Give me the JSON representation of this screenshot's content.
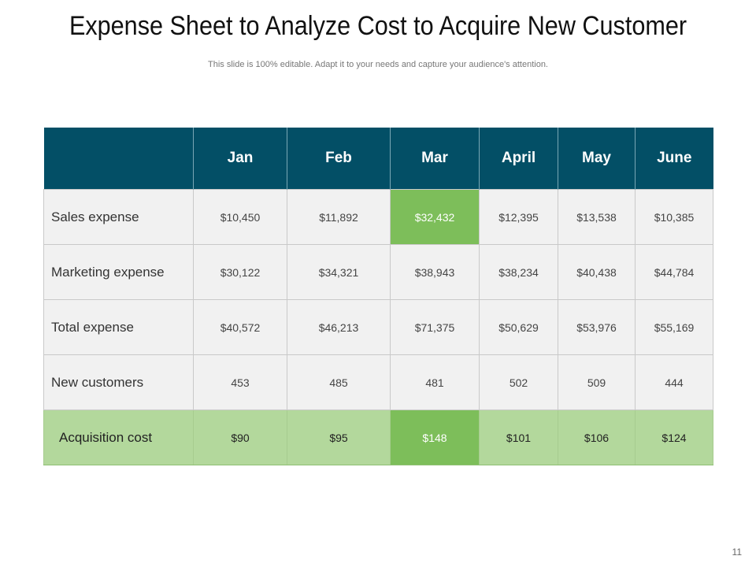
{
  "title": "Expense Sheet to Analyze Cost to Acquire New Customer",
  "subtitle": "This slide is 100% editable. Adapt it to your needs and capture your audience's attention.",
  "page_number": "11",
  "colors": {
    "header": "#034f66",
    "highlight": "#7dbe5a",
    "acquisition_row": "#b3d89c",
    "body": "#f1f1f1"
  },
  "table": {
    "columns": [
      "Jan",
      "Feb",
      "Mar",
      "April",
      "May",
      "June"
    ],
    "rows": [
      {
        "label": "Sales expense",
        "values": [
          "$10,450",
          "$11,892",
          "$32,432",
          "$12,395",
          "$13,538",
          "$10,385"
        ]
      },
      {
        "label": "Marketing expense",
        "values": [
          "$30,122",
          "$34,321",
          "$38,943",
          "$38,234",
          "$40,438",
          "$44,784"
        ]
      },
      {
        "label": "Total expense",
        "values": [
          "$40,572",
          "$46,213",
          "$71,375",
          "$50,629",
          "$53,976",
          "$55,169"
        ]
      },
      {
        "label": "New customers",
        "values": [
          "453",
          "485",
          "481",
          "502",
          "509",
          "444"
        ]
      },
      {
        "label": "Acquisition cost",
        "values": [
          "$90",
          "$95",
          "$148",
          "$101",
          "$106",
          "$124"
        ]
      }
    ],
    "highlighted_cells": [
      {
        "row": "Sales expense",
        "column": "Mar"
      },
      {
        "row": "Acquisition cost",
        "column": "Mar"
      }
    ]
  }
}
